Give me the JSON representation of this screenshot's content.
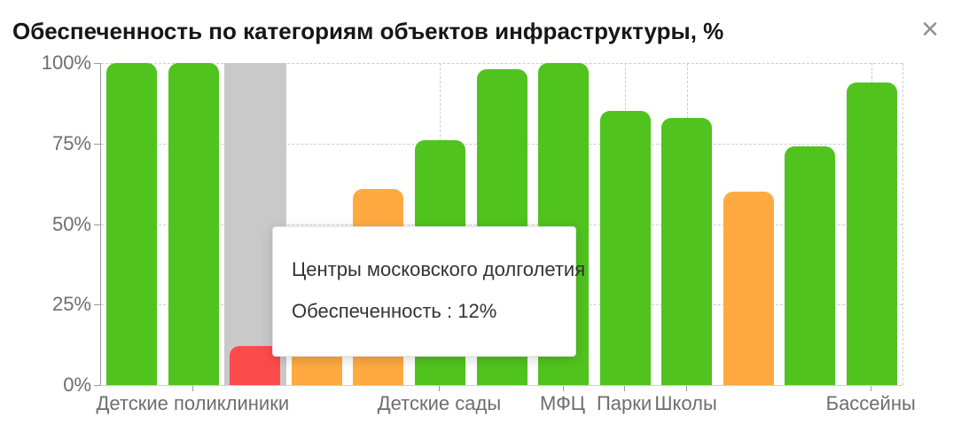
{
  "header": {
    "title": "Обеспеченность по категориям объектов инфраструктуры, %",
    "close_icon_glyph": "×"
  },
  "colors": {
    "green": "#50c31e",
    "orange": "#ffaa41",
    "red": "#fc4b4b",
    "highlight_band": "#c9c9c9",
    "grid": "#cccccc",
    "y_axis_line": "#9a9a9a",
    "x_axis_line": "#cfcfcf",
    "axis_label_text": "#6e6e6e",
    "title_text": "#161616",
    "tooltip_text": "#333333"
  },
  "chart_data": {
    "type": "bar",
    "title": "Обеспеченность по категориям объектов инфраструктуры, %",
    "ylabel": "",
    "ylim": [
      0,
      100
    ],
    "y_tick_labels": [
      "100%",
      "75%",
      "50%",
      "25%",
      "0%"
    ],
    "grid_style": "dashed",
    "legend": "none",
    "series_name": "Обеспеченность",
    "bars": [
      {
        "label": "",
        "value": 100,
        "color": "green",
        "show_label": false,
        "highlighted": false
      },
      {
        "label": "Детские поликлиники",
        "value": 100,
        "color": "green",
        "show_label": true,
        "highlighted": false
      },
      {
        "label": "Центры московского долголетия",
        "value": 12,
        "color": "red",
        "show_label": false,
        "highlighted": true
      },
      {
        "label": "",
        "value": 40,
        "color": "orange",
        "show_label": false,
        "highlighted": false
      },
      {
        "label": "",
        "value": 61,
        "color": "orange",
        "show_label": false,
        "highlighted": false
      },
      {
        "label": "Детские сады",
        "value": 76,
        "color": "green",
        "show_label": true,
        "highlighted": false
      },
      {
        "label": "",
        "value": 98,
        "color": "green",
        "show_label": false,
        "highlighted": false
      },
      {
        "label": "МФЦ",
        "value": 100,
        "color": "green",
        "show_label": true,
        "highlighted": false
      },
      {
        "label": "Парки",
        "value": 85,
        "color": "green",
        "show_label": true,
        "highlighted": false
      },
      {
        "label": "Школы",
        "value": 83,
        "color": "green",
        "show_label": true,
        "highlighted": false
      },
      {
        "label": "",
        "value": 60,
        "color": "orange",
        "show_label": false,
        "highlighted": false
      },
      {
        "label": "",
        "value": 74,
        "color": "green",
        "show_label": false,
        "highlighted": false
      },
      {
        "label": "Бассейны",
        "value": 94,
        "color": "green",
        "show_label": true,
        "highlighted": false
      }
    ]
  },
  "tooltip": {
    "title": "Центры московского долголетия",
    "metric_label": "Обеспеченность",
    "value": "12%",
    "line2": "Обеспеченность : 12%"
  }
}
